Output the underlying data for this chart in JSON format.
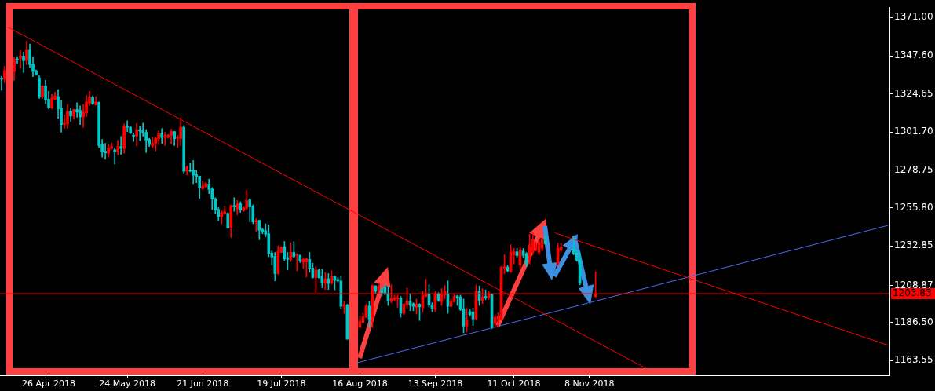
{
  "chart_data": {
    "type": "candlestick",
    "categories": [
      null,
      null,
      null,
      null,
      null,
      null,
      null,
      null,
      null,
      null,
      null,
      null,
      null,
      null,
      null,
      "26 Apr 2018",
      null,
      null,
      null,
      null,
      null,
      null,
      null,
      null,
      null,
      null,
      null,
      null,
      null,
      null,
      null,
      null,
      null,
      null,
      null,
      null,
      null,
      null,
      null,
      null,
      "24 May 2018",
      null,
      null,
      null,
      null,
      null,
      null,
      null,
      null,
      null,
      null,
      null,
      null,
      null,
      null,
      null,
      null,
      null,
      null,
      null,
      null,
      null,
      null,
      null,
      "21 Jun 2018",
      null,
      null,
      null,
      null,
      null,
      null,
      null,
      null,
      null,
      null,
      null,
      null,
      null,
      null,
      null,
      null,
      null,
      null,
      null,
      null,
      null,
      null,
      null,
      null,
      "19 Jul 2018",
      null,
      null,
      null,
      null,
      null,
      null,
      null,
      null,
      null,
      null,
      null,
      null,
      null,
      null,
      null,
      null,
      null,
      null,
      null,
      null,
      null,
      null,
      null,
      null,
      "16 Aug 2018",
      null,
      null,
      null,
      null,
      null,
      null,
      null,
      null,
      null,
      null,
      null,
      null,
      null,
      null,
      null,
      null,
      null,
      null,
      null,
      null,
      null,
      null,
      null,
      "13 Sep 2018",
      null,
      null,
      null,
      null,
      null,
      null,
      null,
      null,
      null,
      null,
      null,
      null,
      null,
      null,
      null,
      null,
      null,
      null,
      null,
      null,
      null,
      null,
      null,
      null,
      "11 Oct 2018",
      null,
      null,
      null,
      null,
      null,
      null,
      null,
      null,
      null,
      null,
      null,
      null,
      null,
      null,
      null,
      null,
      null,
      null,
      null,
      null,
      null,
      null,
      null,
      "8 Nov 2018",
      null,
      null,
      null,
      null,
      null,
      null,
      null,
      null,
      null,
      null,
      null,
      null,
      null,
      null,
      null,
      null,
      null,
      null,
      null,
      null,
      null,
      null,
      null,
      null,
      null,
      null,
      null,
      null,
      null,
      null,
      null,
      null,
      null,
      null,
      null,
      null,
      null,
      null,
      null,
      null,
      null,
      null,
      null,
      null,
      null,
      null,
      null,
      null,
      null,
      null,
      null,
      null,
      null,
      null,
      null,
      null,
      null,
      null,
      null,
      null,
      null,
      null,
      null,
      null,
      null,
      null,
      null,
      null,
      null,
      null,
      null,
      null,
      null,
      null,
      null,
      null,
      null,
      null,
      null,
      null,
      null,
      null,
      null,
      null,
      null,
      null,
      null,
      null,
      null,
      null,
      null,
      null,
      null,
      null,
      null
    ],
    "ohlc": [
      [
        1334.3,
        1335.3,
        1326.9,
        1333.5
      ],
      [
        1333.5,
        1341.4,
        1331.2,
        1339.0
      ],
      null,
      null,
      [
        1338.2,
        1346.9,
        1332.9,
        1345.8
      ],
      [
        1345.8,
        1347.3,
        1343.1,
        1345.3
      ],
      [
        1346.2,
        1350.8,
        1340.3,
        1347.6
      ],
      [
        1347.6,
        1350.0,
        1337.6,
        1344.7
      ],
      [
        1344.7,
        1356.4,
        1342.3,
        1351.2
      ],
      [
        1351.2,
        1354.9,
        1340.7,
        1342.3
      ],
      [
        1342.9,
        1347.3,
        1335.1,
        1338.2
      ],
      [
        1338.7,
        1339.2,
        1335.9,
        1336.4
      ],
      [
        1334.3,
        1335.6,
        1321.9,
        1322.6
      ],
      [
        1322.6,
        1329.6,
        1321.9,
        1329.6
      ],
      [
        1329.6,
        1332.9,
        1318.8,
        1321.1
      ],
      [
        1321.5,
        1326.2,
        1315.7,
        1316.4
      ],
      [
        1316.4,
        1324.3,
        1315.7,
        1322.2
      ],
      [
        1321.5,
        1325.8,
        1321.1,
        1323.5
      ],
      [
        1323.0,
        1327.3,
        1310.0,
        1315.7
      ],
      [
        1316.0,
        1320.7,
        1301.5,
        1306.2
      ],
      [
        1306.2,
        1312.0,
        1303.9,
        1307.0
      ],
      [
        1306.6,
        1318.3,
        1303.9,
        1314.1
      ],
      [
        1314.1,
        1316.0,
        1308.1,
        1311.3
      ],
      [
        1311.3,
        1315.3,
        1309.4,
        1315.3
      ],
      [
        1315.2,
        1319.4,
        1310.5,
        1313.6
      ],
      [
        1314.7,
        1317.5,
        1306.2,
        1310.8
      ],
      [
        1310.8,
        1318.3,
        1304.5,
        1313.6
      ],
      [
        1313.3,
        1323.8,
        1311.0,
        1319.9
      ],
      [
        1319.1,
        1326.2,
        1317.5,
        1322.6
      ],
      [
        1322.6,
        1323.5,
        1318.3,
        1318.6
      ],
      [
        1318.3,
        1323.0,
        1317.8,
        1319.9
      ],
      [
        1319.6,
        1319.9,
        1292.1,
        1293.5
      ],
      [
        1294.0,
        1297.2,
        1286.5,
        1289.6
      ],
      [
        1290.1,
        1294.8,
        1285.1,
        1289.0
      ],
      [
        1288.8,
        1294.0,
        1286.5,
        1292.1
      ],
      [
        1291.7,
        1295.1,
        1291.2,
        1292.9
      ],
      [
        1290.9,
        1292.1,
        1282.3,
        1289.6
      ],
      [
        1289.8,
        1296.7,
        1287.7,
        1292.9
      ],
      [
        1292.9,
        1299.0,
        1288.1,
        1291.7
      ],
      [
        1291.7,
        1306.6,
        1288.8,
        1305.0
      ],
      [
        1305.3,
        1308.4,
        1301.9,
        1304.5
      ],
      [
        1304.5,
        1305.0,
        1300.6,
        1301.1
      ],
      [
        1299.5,
        1301.1,
        1295.9,
        1299.2
      ],
      [
        1299.2,
        1306.9,
        1293.2,
        1303.1
      ],
      [
        1303.1,
        1305.3,
        1296.4,
        1302.3
      ],
      [
        1302.6,
        1307.0,
        1299.2,
        1301.1
      ],
      [
        1301.5,
        1303.1,
        1289.3,
        1296.8
      ],
      [
        1297.2,
        1297.9,
        1292.9,
        1294.0
      ],
      [
        1293.2,
        1298.7,
        1292.4,
        1294.8
      ],
      [
        1294.8,
        1298.7,
        1290.1,
        1297.9
      ],
      [
        1297.5,
        1302.3,
        1294.0,
        1300.6
      ],
      [
        1300.6,
        1303.7,
        1294.8,
        1298.3
      ],
      [
        1298.3,
        1301.4,
        1293.5,
        1299.5
      ],
      [
        1298.6,
        1300.1,
        1297.9,
        1299.8
      ],
      [
        1299.5,
        1303.3,
        1294.5,
        1301.9
      ],
      [
        1301.9,
        1301.9,
        1293.5,
        1297.6
      ],
      [
        1297.9,
        1299.5,
        1292.3,
        1298.4
      ],
      [
        1297.6,
        1310.2,
        1293.2,
        1304.7
      ],
      [
        1304.7,
        1305.6,
        1276.9,
        1277.9
      ],
      [
        1277.9,
        1281.2,
        1275.7,
        1280.4
      ],
      [
        1278.7,
        1283.0,
        1277.6,
        1278.0
      ],
      [
        1278.7,
        1284.5,
        1270.5,
        1275.5
      ],
      [
        1276.0,
        1278.3,
        1271.0,
        1274.7
      ],
      [
        1275.0,
        1275.0,
        1261.6,
        1267.7
      ],
      [
        1267.4,
        1271.8,
        1266.9,
        1268.9
      ],
      [
        1268.5,
        1271.3,
        1268.1,
        1270.5
      ],
      [
        1270.3,
        1273.2,
        1264.4,
        1266.9
      ],
      [
        1267.2,
        1268.1,
        1254.8,
        1261.1
      ],
      [
        1261.4,
        1262.0,
        1252.5,
        1254.5
      ],
      [
        1254.8,
        1255.9,
        1248.1,
        1250.6
      ],
      [
        1250.6,
        1254.0,
        1246.2,
        1252.9
      ],
      [
        1252.5,
        1256.4,
        1251.7,
        1253.6
      ],
      [
        1252.5,
        1252.9,
        1243.5,
        1243.5
      ],
      [
        1243.5,
        1257.6,
        1237.9,
        1257.3
      ],
      [
        1257.2,
        1261.9,
        1253.7,
        1256.4
      ],
      [
        1255.1,
        1260.3,
        1251.7,
        1258.3
      ],
      [
        1258.3,
        1259.5,
        1253.1,
        1254.5
      ],
      [
        1254.0,
        1256.4,
        1253.7,
        1255.9
      ],
      [
        1255.6,
        1266.6,
        1254.8,
        1260.3
      ],
      [
        1260.6,
        1261.4,
        1247.3,
        1256.4
      ],
      [
        1256.7,
        1257.6,
        1246.2,
        1247.3
      ],
      [
        1247.3,
        1249.3,
        1241.3,
        1248.2
      ],
      [
        1248.2,
        1248.5,
        1236.5,
        1242.3
      ],
      [
        1242.7,
        1243.5,
        1240.2,
        1241.2
      ],
      [
        1242.0,
        1246.2,
        1238.4,
        1239.9
      ],
      [
        1240.2,
        1245.4,
        1226.3,
        1228.2
      ],
      [
        1228.5,
        1229.7,
        1221.1,
        1226.1
      ],
      [
        1226.6,
        1228.9,
        1211.7,
        1216.1
      ],
      [
        1216.1,
        1232.9,
        1215.6,
        1229.4
      ],
      [
        1228.9,
        1232.4,
        1228.8,
        1231.8
      ],
      [
        1232.4,
        1235.5,
        1223.8,
        1225.0
      ],
      [
        1225.8,
        1228.9,
        1218.3,
        1224.7
      ],
      [
        1224.7,
        1234.7,
        1223.3,
        1228.9
      ],
      [
        1228.9,
        1235.5,
        1225.5,
        1226.3
      ],
      [
        1227.1,
        1228.2,
        1217.8,
        1227.7
      ],
      [
        1227.1,
        1227.4,
        1222.7,
        1223.9
      ],
      [
        1223.0,
        1225.8,
        1219.2,
        1224.7
      ],
      [
        1223.1,
        1225.5,
        1214.0,
        1225.0
      ],
      [
        1224.7,
        1228.9,
        1216.9,
        1219.2
      ],
      [
        1219.5,
        1222.4,
        1213.3,
        1213.7
      ],
      [
        1213.7,
        1220.3,
        1204.6,
        1218.3
      ],
      [
        1218.3,
        1218.8,
        1213.3,
        1213.6
      ],
      [
        1214.4,
        1218.8,
        1207.5,
        1210.6
      ],
      [
        1210.6,
        1216.7,
        1206.5,
        1213.0
      ],
      [
        1213.0,
        1216.1,
        1206.5,
        1210.1
      ],
      [
        1210.1,
        1217.7,
        1209.7,
        1214.4
      ],
      [
        1214.4,
        1214.8,
        1206.2,
        1212.0
      ],
      [
        1212.6,
        1213.7,
        1210.9,
        1211.7
      ],
      [
        1211.7,
        1214.4,
        1194.8,
        1196.3
      ],
      [
        1196.3,
        1199.2,
        1191.9,
        1197.3
      ],
      [
        1197.1,
        1197.6,
        1176.4,
        1176.4
      ],
      null,
      null,
      null,
      [
        1183.5,
        1190.5,
        1183.5,
        1187.1
      ],
      [
        1186.6,
        1192.1,
        1186.3,
        1190.1
      ],
      [
        1189.7,
        1197.6,
        1189.4,
        1196.5
      ],
      [
        1196.5,
        1199.1,
        1183.5,
        1188.6
      ],
      [
        1189.7,
        1209.3,
        1183.5,
        1208.9
      ],
      [
        1208.6,
        1208.9,
        1203.9,
        1205.4
      ],
      [
        1206.2,
        1209.3,
        1204.6,
        1208.2
      ],
      [
        1207.0,
        1207.3,
        1202.3,
        1204.6
      ],
      [
        1208.2,
        1209.3,
        1203.1,
        1204.2
      ],
      [
        1204.2,
        1208.6,
        1196.8,
        1199.6
      ],
      [
        1199.6,
        1209.3,
        1198.4,
        1201.0
      ],
      [
        1200.4,
        1203.1,
        1199.5,
        1201.5
      ],
      [
        1200.7,
        1203.1,
        1195.7,
        1201.5
      ],
      [
        1201.3,
        1202.3,
        1189.7,
        1192.1
      ],
      [
        1192.1,
        1197.9,
        1191.3,
        1197.6
      ],
      [
        1197.3,
        1207.3,
        1195.2,
        1199.6
      ],
      [
        1199.5,
        1203.9,
        1193.7,
        1197.1
      ],
      [
        1197.9,
        1198.4,
        1193.7,
        1196.3
      ],
      [
        1195.7,
        1200.7,
        1191.6,
        1197.6
      ],
      [
        1197.6,
        1197.9,
        1187.7,
        1196.0
      ],
      [
        1195.7,
        1205.4,
        1192.9,
        1202.8
      ],
      [
        1202.3,
        1212.8,
        1202.0,
        1203.9
      ],
      [
        1203.9,
        1209.3,
        1196.0,
        1197.0
      ],
      [
        1197.3,
        1198.4,
        1193.2,
        1194.8
      ],
      [
        1194.4,
        1205.4,
        1192.9,
        1203.9
      ],
      [
        1203.9,
        1204.6,
        1199.1,
        1199.9
      ],
      [
        1199.1,
        1207.0,
        1196.8,
        1203.4
      ],
      [
        1203.1,
        1208.9,
        1200.7,
        1205.4
      ],
      [
        1203.9,
        1211.7,
        1192.1,
        1196.3
      ],
      [
        1196.3,
        1200.7,
        1196.0,
        1199.5
      ],
      [
        1199.1,
        1203.9,
        1198.8,
        1202.3
      ],
      [
        1202.6,
        1203.1,
        1196.8,
        1201.2
      ],
      [
        1202.0,
        1203.1,
        1193.7,
        1194.4
      ],
      [
        1194.9,
        1200.7,
        1180.3,
        1184.3
      ],
      [
        1184.3,
        1195.2,
        1180.8,
        1188.2
      ],
      [
        1193.2,
        1194.4,
        1190.5,
        1191.3
      ],
      [
        1192.9,
        1195.2,
        1184.6,
        1188.6
      ],
      [
        1188.6,
        1209.3,
        1188.2,
        1205.4
      ],
      [
        1205.4,
        1208.6,
        1196.8,
        1199.9
      ],
      [
        1199.9,
        1207.0,
        1197.9,
        1202.0
      ],
      [
        1202.3,
        1206.2,
        1200.4,
        1201.2
      ],
      [
        1201.2,
        1205.4,
        1200.4,
        1203.9
      ],
      [
        1203.5,
        1203.9,
        1182.7,
        1183.8
      ],
      [
        1185.8,
        1191.3,
        1183.5,
        1189.7
      ],
      [
        1188.2,
        1192.4,
        1183.5,
        1190.2
      ],
      [
        1188.2,
        1220.6,
        1188.2,
        1220.0
      ],
      [
        1219.5,
        1227.4,
        1216.1,
        1220.3
      ],
      [
        1220.0,
        1221.1,
        1217.2,
        1217.7
      ],
      [
        1217.2,
        1233.6,
        1216.7,
        1228.9
      ],
      [
        1227.4,
        1231.3,
        1221.9,
        1229.3
      ],
      [
        1229.3,
        1231.3,
        1225.8,
        1226.9
      ],
      [
        1221.4,
        1232.1,
        1218.7,
        1230.5
      ],
      [
        1229.7,
        1231.3,
        1225.8,
        1227.1
      ],
      [
        1228.2,
        1228.9,
        1220.3,
        1221.9
      ],
      [
        1224.2,
        1239.9,
        1221.9,
        1233.6
      ],
      [
        1228.9,
        1240.7,
        1227.4,
        1236.8
      ],
      [
        1230.5,
        1235.2,
        1229.7,
        1232.9
      ],
      [
        1228.9,
        1236.8,
        1227.4,
        1235.2
      ],
      [
        1231.3,
        1237.6,
        1229.7,
        1236.8
      ],
      [
        1238.3,
        1239.1,
        1233.6,
        1234.0
      ],
      null,
      null,
      null,
      [
        1221.9,
        1234.4,
        1221.1,
        1231.3
      ],
      [
        1230.2,
        1234.4,
        1229.3,
        1232.1
      ],
      null,
      null,
      null,
      [
        1231.3,
        1237.6,
        1227.4,
        1228.2
      ],
      [
        1228.9,
        1230.2,
        1223.5,
        1224.2
      ],
      [
        1224.2,
        1228.9,
        1209.3,
        1210.1
      ],
      null,
      null,
      null,
      null,
      [
        1202.3,
        1217.2,
        1201.5,
        1203.8
      ],
      null,
      null,
      null,
      null,
      null,
      null,
      null,
      null,
      null,
      null,
      null,
      null,
      null,
      null,
      null,
      null,
      null,
      null,
      null,
      null,
      null,
      null,
      null,
      null,
      null,
      null,
      null,
      null,
      null,
      null,
      null,
      null,
      null,
      null,
      null,
      null,
      null,
      null,
      null,
      null,
      null,
      null,
      null,
      null,
      null,
      null,
      null,
      null,
      null,
      null,
      null,
      null,
      null,
      null,
      null,
      null,
      null,
      null,
      null,
      null,
      null,
      null,
      null,
      null,
      null,
      null,
      null,
      null,
      null,
      null,
      null,
      null,
      null,
      null,
      null,
      null,
      null,
      null,
      null,
      null,
      null,
      null,
      null,
      null,
      null,
      null,
      null,
      null,
      null,
      null,
      null,
      null,
      null
    ],
    "colors": [
      "#00c8c8",
      "#ff0000",
      null,
      null,
      "#ff0000",
      "#00c8c8",
      "#ff0000",
      "#00c8c8",
      "#ff0000",
      "#00c8c8",
      "#00c8c8",
      "#00c8c8",
      "#00c8c8",
      "#ff0000",
      "#00c8c8",
      "#00c8c8",
      "#ff0000",
      "#ff0000",
      "#00c8c8",
      "#00c8c8",
      "#ff0000",
      "#ff0000",
      "#00c8c8",
      "#ff0000",
      "#00c8c8",
      "#00c8c8",
      "#ff0000",
      "#ff0000",
      "#ff0000",
      "#00c8c8",
      "#ff0000",
      "#00c8c8",
      "#00c8c8",
      "#00c8c8",
      "#ff0000",
      "#ff0000",
      "#00c8c8",
      "#ff0000",
      "#00c8c8",
      "#ff0000",
      "#00c8c8",
      "#00c8c8",
      "#00c8c8",
      "#ff0000",
      "#00c8c8",
      "#00c8c8",
      "#00c8c8",
      "#00c8c8",
      "#ff0000",
      "#ff0000",
      "#ff0000",
      "#00c8c8",
      "#ff0000",
      "#ff0000",
      "#ff0000",
      "#00c8c8",
      "#ff0000",
      "#ff0000",
      "#00c8c8",
      "#ff0000",
      "#00c8c8",
      "#00c8c8",
      "#00c8c8",
      "#00c8c8",
      "#ff0000",
      "#ff0000",
      "#00c8c8",
      "#00c8c8",
      "#00c8c8",
      "#00c8c8",
      "#ff0000",
      "#ff0000",
      "#00c8c8",
      "#ff0000",
      "#00c8c8",
      "#ff0000",
      "#00c8c8",
      "#ff0000",
      "#ff0000",
      "#00c8c8",
      "#00c8c8",
      "#ff0000",
      "#00c8c8",
      "#00c8c8",
      "#00c8c8",
      "#00c8c8",
      "#00c8c8",
      "#00c8c8",
      "#ff0000",
      "#ff0000",
      "#00c8c8",
      "#00c8c8",
      "#ff0000",
      "#00c8c8",
      "#ff0000",
      "#00c8c8",
      "#ff0000",
      "#ff0000",
      "#00c8c8",
      "#00c8c8",
      "#ff0000",
      "#00c8c8",
      "#00c8c8",
      "#ff0000",
      "#00c8c8",
      "#ff0000",
      "#00c8c8",
      "#00c8c8",
      "#00c8c8",
      "#ff0000",
      "#00c8c8",
      null,
      null,
      null,
      "#ff0000",
      "#ff0000",
      "#ff0000",
      "#00c8c8",
      "#ff0000",
      "#00c8c8",
      "#ff0000",
      "#00c8c8",
      "#00c8c8",
      "#00c8c8",
      "#ff0000",
      "#ff0000",
      "#ff0000",
      "#00c8c8",
      "#ff0000",
      "#ff0000",
      "#00c8c8",
      "#00c8c8",
      "#ff0000",
      "#00c8c8",
      "#ff0000",
      "#ff0000",
      "#00c8c8",
      "#00c8c8",
      "#ff0000",
      "#00c8c8",
      "#ff0000",
      "#ff0000",
      "#00c8c8",
      "#ff0000",
      "#ff0000",
      "#00c8c8",
      "#00c8c8",
      "#00c8c8",
      "#ff0000",
      "#00c8c8",
      "#00c8c8",
      "#ff0000",
      "#00c8c8",
      "#ff0000",
      "#00c8c8",
      "#ff0000",
      "#00c8c8",
      "#ff0000",
      "#ff0000",
      "#ff0000",
      "#ff0000",
      "#00c8c8",
      "#ff0000",
      "#ff0000",
      "#00c8c8",
      "#ff0000",
      "#00c8c8",
      "#00c8c8",
      "#ff0000",
      "#ff0000",
      "#ff0000",
      "#ff0000",
      "#ff0000",
      "#00c8c8",
      null,
      null,
      null,
      "#ff0000",
      "#ff0000",
      null,
      null,
      null,
      "#00c8c8",
      "#00c8c8",
      "#00c8c8",
      null,
      null,
      null,
      null,
      "#ff0000",
      null,
      null,
      null,
      null,
      null,
      null,
      null,
      null,
      null,
      null,
      null,
      null,
      null,
      null,
      null,
      null,
      null,
      null,
      null,
      null,
      null,
      null,
      null,
      null,
      null,
      null,
      null,
      null,
      null,
      null,
      null,
      null,
      null,
      null,
      null,
      null,
      null,
      null,
      null,
      null,
      null,
      null,
      null,
      null,
      null,
      null,
      null,
      null,
      null,
      null,
      null,
      null,
      null,
      null,
      null,
      null,
      null,
      null,
      null,
      null,
      null,
      null,
      null,
      null,
      null,
      null,
      null,
      null,
      null,
      null,
      null,
      null,
      null,
      null,
      null,
      null,
      null,
      null,
      null,
      null,
      null,
      null,
      null,
      null,
      null,
      null,
      null,
      null,
      null,
      null,
      null,
      null,
      null
    ],
    "series": [
      {
        "type": "line",
        "color": "#ff0000",
        "values": [
          null,
          null,
          1365.1,
          null,
          null,
          null,
          null,
          null,
          null,
          null,
          null,
          null,
          null,
          null,
          null,
          null,
          null,
          null,
          null,
          null,
          null,
          null,
          null,
          null,
          null,
          null,
          null,
          null,
          null,
          null,
          null,
          null,
          null,
          null,
          null,
          null,
          null,
          null,
          null,
          null,
          null,
          null,
          null,
          null,
          null,
          null,
          null,
          null,
          null,
          null,
          null,
          null,
          null,
          null,
          null,
          null,
          null,
          null,
          null,
          null,
          null,
          null,
          null,
          null,
          null,
          null,
          null,
          null,
          null,
          null,
          null,
          null,
          null,
          null,
          null,
          null,
          null,
          null,
          null,
          null,
          null,
          null,
          null,
          null,
          null,
          null,
          null,
          null,
          null,
          null,
          null,
          null,
          null,
          null,
          null,
          null,
          null,
          null,
          null,
          null,
          null,
          null,
          null,
          null,
          null,
          null,
          null,
          null,
          null,
          null,
          null,
          null,
          null,
          null,
          null,
          null,
          null,
          null,
          null,
          null,
          null,
          null,
          null,
          null,
          null,
          null,
          null,
          null,
          null,
          null,
          null,
          null,
          null,
          null,
          null,
          null,
          null,
          null,
          null,
          null,
          null,
          null,
          null,
          null,
          null,
          null,
          null,
          null,
          null,
          null,
          null,
          null,
          null,
          null,
          null,
          null,
          null,
          null,
          null,
          null,
          null,
          null,
          null,
          null,
          null,
          null,
          null,
          null,
          null,
          null,
          null,
          null,
          null,
          null,
          null,
          null,
          null,
          null,
          null,
          null,
          null,
          null,
          null,
          null,
          null,
          null,
          null,
          null,
          null,
          null,
          null,
          null,
          null,
          null,
          null,
          null,
          null,
          null,
          null,
          null,
          null,
          null,
          null,
          null,
          null,
          1158.8,
          null,
          null,
          null,
          null,
          null,
          null,
          null,
          null,
          null,
          null,
          null,
          null,
          null,
          null,
          null,
          null,
          null,
          null,
          null,
          null,
          null,
          null,
          null,
          null,
          null,
          null,
          null,
          null,
          null,
          null,
          null,
          null,
          null,
          null,
          null,
          null,
          null,
          null,
          null,
          null,
          null,
          null,
          null,
          null,
          null,
          null,
          null,
          null,
          null,
          null,
          null,
          null,
          null,
          null,
          null,
          null,
          null,
          null,
          null,
          null,
          null,
          null,
          null,
          null,
          null,
          null,
          null,
          null,
          null,
          null,
          null,
          null,
          null,
          null,
          null,
          null,
          null
        ]
      },
      {
        "type": "line",
        "color": "#ff0000",
        "values": [
          null,
          null,
          null,
          null,
          null,
          null,
          null,
          null,
          null,
          null,
          null,
          null,
          null,
          null,
          null,
          null,
          null,
          null,
          null,
          null,
          null,
          null,
          null,
          null,
          null,
          null,
          null,
          null,
          null,
          null,
          null,
          null,
          null,
          null,
          null,
          null,
          null,
          null,
          null,
          null,
          null,
          null,
          null,
          null,
          null,
          null,
          null,
          null,
          null,
          null,
          null,
          null,
          null,
          null,
          null,
          null,
          null,
          null,
          null,
          null,
          null,
          null,
          null,
          null,
          null,
          null,
          null,
          null,
          null,
          null,
          null,
          null,
          null,
          null,
          null,
          null,
          null,
          null,
          null,
          null,
          null,
          null,
          null,
          null,
          null,
          null,
          null,
          null,
          null,
          null,
          null,
          null,
          null,
          null,
          null,
          null,
          null,
          null,
          null,
          null,
          null,
          null,
          null,
          null,
          null,
          null,
          null,
          null,
          null,
          null,
          null,
          null,
          null,
          null,
          null,
          null,
          null,
          null,
          null,
          null,
          null,
          null,
          null,
          null,
          null,
          null,
          null,
          null,
          null,
          null,
          null,
          null,
          null,
          null,
          null,
          null,
          null,
          null,
          null,
          null,
          null,
          null,
          null,
          null,
          null,
          null,
          null,
          null,
          null,
          null,
          null,
          null,
          null,
          null,
          null,
          null,
          null,
          null,
          null,
          null,
          null,
          null,
          null,
          null,
          null,
          null,
          null,
          null,
          null,
          null,
          null,
          null,
          null,
          null,
          null,
          null,
          1240.7,
          null,
          null,
          null,
          null,
          null,
          null,
          null,
          null,
          null,
          null,
          null,
          null,
          null,
          null,
          null,
          null,
          null,
          null,
          null,
          null,
          null,
          null,
          null,
          null,
          null,
          null,
          null,
          null,
          null,
          null,
          null,
          null,
          null,
          null,
          null,
          null,
          null,
          null,
          null,
          null,
          null,
          null,
          null,
          null,
          null,
          null,
          null,
          null,
          null,
          null,
          null,
          null,
          null,
          null,
          null,
          null,
          null,
          null,
          null,
          null,
          null,
          null,
          null,
          null,
          null,
          null,
          null,
          null,
          null,
          null,
          null,
          null,
          null,
          null,
          null,
          null,
          null,
          null,
          null,
          null,
          null,
          null,
          null,
          null,
          null,
          null,
          null,
          null,
          null,
          null,
          null,
          null,
          null,
          null,
          null,
          null,
          null,
          null,
          null,
          null,
          null,
          null,
          null,
          null,
          null,
          1172.8
        ]
      },
      {
        "type": "line",
        "color": "#4a6cf0",
        "values": [
          null,
          null,
          null,
          null,
          null,
          null,
          null,
          null,
          null,
          null,
          null,
          null,
          null,
          null,
          null,
          null,
          null,
          null,
          null,
          null,
          null,
          null,
          null,
          null,
          null,
          null,
          null,
          null,
          null,
          null,
          null,
          null,
          null,
          null,
          null,
          null,
          null,
          null,
          null,
          null,
          null,
          null,
          null,
          null,
          null,
          null,
          null,
          null,
          null,
          null,
          null,
          null,
          null,
          null,
          null,
          null,
          null,
          null,
          null,
          null,
          null,
          null,
          null,
          null,
          null,
          null,
          null,
          null,
          null,
          null,
          null,
          null,
          null,
          null,
          null,
          null,
          null,
          null,
          null,
          null,
          null,
          null,
          null,
          null,
          null,
          null,
          null,
          null,
          null,
          null,
          null,
          null,
          null,
          null,
          null,
          null,
          null,
          null,
          null,
          null,
          null,
          null,
          null,
          null,
          null,
          null,
          null,
          null,
          null,
          null,
          null,
          null,
          null,
          1162.1,
          null,
          null,
          null,
          null,
          null,
          null,
          null,
          null,
          null,
          null,
          null,
          null,
          null,
          null,
          null,
          null,
          null,
          null,
          null,
          null,
          null,
          null,
          null,
          null,
          null,
          null,
          null,
          null,
          null,
          null,
          null,
          null,
          null,
          null,
          null,
          null,
          null,
          null,
          null,
          null,
          null,
          null,
          null,
          null,
          null,
          null,
          null,
          null,
          null,
          null,
          null,
          null,
          null,
          null,
          null,
          null,
          null,
          null,
          null,
          null,
          null,
          null,
          null,
          null,
          null,
          null,
          null,
          null,
          null,
          null,
          null,
          null,
          null,
          null,
          null,
          null,
          null,
          null,
          null,
          null,
          null,
          null,
          null,
          null,
          null,
          null,
          null,
          null,
          null,
          null,
          null,
          null,
          null,
          null,
          null,
          null,
          null,
          null,
          null,
          null,
          null,
          null,
          null,
          null,
          null,
          null,
          null,
          null,
          null,
          null,
          null,
          null,
          null,
          null,
          null,
          null,
          null,
          null,
          null,
          null,
          null,
          null,
          null,
          null,
          null,
          null,
          null,
          null,
          null,
          null,
          null,
          null,
          null,
          null,
          null,
          null,
          null,
          null,
          null,
          null,
          null,
          null,
          null,
          null,
          null,
          null,
          null,
          null,
          null,
          null,
          null,
          null,
          null,
          null,
          null,
          null,
          null,
          null,
          null,
          null,
          null,
          null,
          null,
          null,
          null,
          null,
          null,
          null,
          1245.2
        ]
      }
    ],
    "ylim": [
      1154.6,
      1377.1
    ],
    "yticks": [
      {
        "value": 1371,
        "label": "1371.00"
      },
      {
        "value": 1347.6,
        "label": "1347.60"
      },
      {
        "value": 1324.65,
        "label": "1324.65"
      },
      {
        "value": 1301.7,
        "label": "1301.70"
      },
      {
        "value": 1278.75,
        "label": "1278.75"
      },
      {
        "value": 1255.8,
        "label": "1255.80"
      },
      {
        "value": 1232.85,
        "label": "1232.85"
      },
      {
        "value": 1208.87,
        "label": "1208.87"
      },
      {
        "value": 1186.5,
        "label": "1186.50"
      },
      {
        "value": 1163.55,
        "label": "1163.55"
      }
    ],
    "ref_lines": [
      {
        "axis": "y",
        "value": 1203.83,
        "label": "1203.83",
        "color": "#ff0000",
        "line_style": "solid"
      }
    ]
  }
}
